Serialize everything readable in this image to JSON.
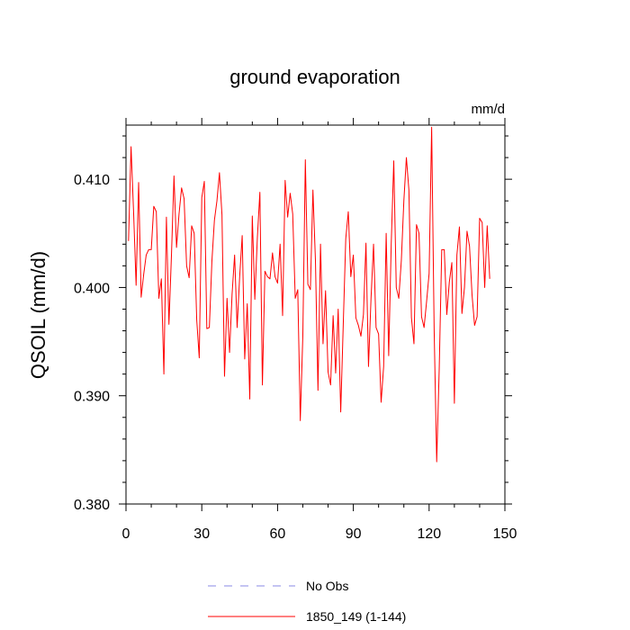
{
  "chart_data": {
    "type": "line",
    "title": "ground evaporation",
    "units": "mm/d",
    "ylabel": "QSOIL  (mm/d)",
    "xlabel": "",
    "xlim": [
      0,
      150
    ],
    "ylim": [
      0.38,
      0.415
    ],
    "xticks": [
      0,
      30,
      60,
      90,
      120,
      150
    ],
    "xtick_labels": [
      "0",
      "30",
      "60",
      "90",
      "120",
      "150"
    ],
    "yticks": [
      0.38,
      0.39,
      0.4,
      0.41
    ],
    "ytick_labels": [
      "0.380",
      "0.390",
      "0.400",
      "0.410"
    ],
    "grid": false,
    "legend": [
      {
        "label": "No Obs",
        "color": "#8a8ae6",
        "style": "dashed"
      },
      {
        "label": "1850_149 (1-144)",
        "color": "#ff0000",
        "style": "solid"
      }
    ],
    "series": [
      {
        "name": "1850_149 (1-144)",
        "color": "#ff0000",
        "x_start": 1,
        "values": [
          0.4043,
          0.413,
          0.407,
          0.4002,
          0.4097,
          0.3991,
          0.4012,
          0.403,
          0.4035,
          0.4035,
          0.4075,
          0.407,
          0.399,
          0.4008,
          0.392,
          0.4065,
          0.3966,
          0.403,
          0.4103,
          0.4037,
          0.4068,
          0.4092,
          0.4082,
          0.402,
          0.4009,
          0.4057,
          0.405,
          0.397,
          0.3935,
          0.4083,
          0.4098,
          0.3962,
          0.3963,
          0.4024,
          0.4062,
          0.408,
          0.4106,
          0.4067,
          0.3918,
          0.399,
          0.394,
          0.3994,
          0.403,
          0.3963,
          0.401,
          0.4048,
          0.3934,
          0.3985,
          0.3897,
          0.4066,
          0.3989,
          0.4046,
          0.4088,
          0.391,
          0.4015,
          0.401,
          0.4008,
          0.4032,
          0.401,
          0.4004,
          0.404,
          0.3974,
          0.4099,
          0.4065,
          0.4087,
          0.4068,
          0.399,
          0.3998,
          0.3877,
          0.3955,
          0.4118,
          0.4003,
          0.3998,
          0.409,
          0.4025,
          0.3905,
          0.404,
          0.3948,
          0.3997,
          0.3922,
          0.391,
          0.3974,
          0.3921,
          0.398,
          0.3885,
          0.3965,
          0.4045,
          0.407,
          0.401,
          0.403,
          0.3972,
          0.3965,
          0.3955,
          0.3975,
          0.4041,
          0.3927,
          0.399,
          0.404,
          0.3963,
          0.3957,
          0.3894,
          0.3927,
          0.405,
          0.3937,
          0.404,
          0.4117,
          0.4,
          0.399,
          0.4025,
          0.408,
          0.412,
          0.409,
          0.3972,
          0.3948,
          0.4058,
          0.405,
          0.3973,
          0.3963,
          0.3987,
          0.4013,
          0.4148,
          0.396,
          0.3839,
          0.3925,
          0.4035,
          0.4035,
          0.3975,
          0.4005,
          0.4023,
          0.3893,
          0.403,
          0.4056,
          0.3976,
          0.4,
          0.4052,
          0.4038,
          0.3993,
          0.3965,
          0.3973,
          0.4064,
          0.406,
          0.4,
          0.4057,
          0.4008
        ]
      }
    ]
  }
}
